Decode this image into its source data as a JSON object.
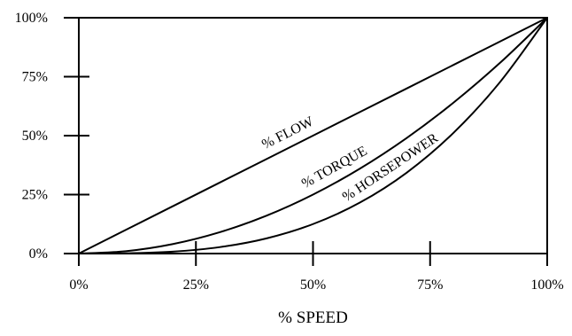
{
  "chart_data": {
    "type": "line",
    "xlabel": "% SPEED",
    "ylabel": "",
    "xlim": [
      0,
      100
    ],
    "ylim": [
      0,
      100
    ],
    "x_ticks": [
      0,
      25,
      50,
      75,
      100
    ],
    "y_ticks": [
      0,
      25,
      50,
      75,
      100
    ],
    "x_tick_labels": [
      "0%",
      "25%",
      "50%",
      "75%",
      "100%"
    ],
    "y_tick_labels": [
      "0%",
      "25%",
      "50%",
      "75%",
      "100%"
    ],
    "grid": false,
    "legend": "none",
    "series": [
      {
        "name": "% FLOW",
        "x": [
          0,
          10,
          20,
          30,
          40,
          50,
          60,
          70,
          80,
          90,
          100
        ],
        "y": [
          0,
          10,
          20,
          30,
          40,
          50,
          60,
          70,
          80,
          90,
          100
        ]
      },
      {
        "name": "% TORQUE",
        "x": [
          0,
          10,
          20,
          30,
          40,
          50,
          60,
          70,
          80,
          90,
          100
        ],
        "y": [
          0,
          1,
          4,
          9,
          16,
          25,
          36,
          49,
          64,
          81,
          100
        ]
      },
      {
        "name": "% HORSEPOWER",
        "x": [
          0,
          10,
          20,
          30,
          40,
          50,
          60,
          70,
          80,
          90,
          100
        ],
        "y": [
          0,
          0.1,
          0.8,
          2.7,
          6.4,
          12.5,
          21.6,
          34.3,
          51.2,
          72.9,
          100
        ]
      }
    ]
  }
}
